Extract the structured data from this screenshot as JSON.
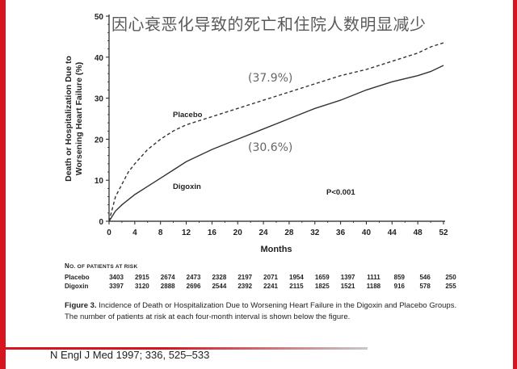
{
  "slide": {
    "title": "因心衰恶化导致的死亡和住院人数明显减少",
    "source": "N Engl J Med 1997; 336, 525–533"
  },
  "chart_data": {
    "type": "line",
    "ylabel_line1": "Death or Hospitalization Due to",
    "ylabel_line2": "Worsening Heart Failure (%)",
    "xlabel": "Months",
    "xlim": [
      0,
      52
    ],
    "ylim": [
      0,
      50
    ],
    "xticks": [
      0,
      4,
      8,
      12,
      16,
      20,
      24,
      28,
      32,
      36,
      40,
      44,
      48,
      52
    ],
    "yticks": [
      0,
      10,
      20,
      30,
      40,
      50
    ],
    "series": [
      {
        "name": "Placebo",
        "style": "dashed",
        "end_label": "(37.9%)",
        "points": [
          [
            0,
            0
          ],
          [
            1,
            6
          ],
          [
            2,
            9
          ],
          [
            3,
            12
          ],
          [
            4,
            14
          ],
          [
            6,
            17.5
          ],
          [
            8,
            20
          ],
          [
            10,
            22
          ],
          [
            12,
            23.5
          ],
          [
            14,
            24.5
          ],
          [
            16,
            25.5
          ],
          [
            18,
            26.5
          ],
          [
            20,
            27.5
          ],
          [
            24,
            29.5
          ],
          [
            28,
            31.5
          ],
          [
            32,
            33.5
          ],
          [
            36,
            35.5
          ],
          [
            40,
            37
          ],
          [
            44,
            39
          ],
          [
            48,
            41
          ],
          [
            50,
            42.5
          ],
          [
            52,
            43.5
          ]
        ]
      },
      {
        "name": "Digoxin",
        "style": "solid",
        "end_label": "(30.6%)",
        "points": [
          [
            0,
            0
          ],
          [
            1,
            2.5
          ],
          [
            2,
            4
          ],
          [
            4,
            6.5
          ],
          [
            6,
            8.5
          ],
          [
            8,
            10.5
          ],
          [
            10,
            12.5
          ],
          [
            12,
            14.5
          ],
          [
            16,
            17.5
          ],
          [
            20,
            20
          ],
          [
            24,
            22.5
          ],
          [
            28,
            25
          ],
          [
            32,
            27.5
          ],
          [
            36,
            29.5
          ],
          [
            40,
            32
          ],
          [
            44,
            34
          ],
          [
            48,
            35.5
          ],
          [
            50,
            36.5
          ],
          [
            52,
            38
          ]
        ]
      }
    ],
    "annotation": "P<0.001"
  },
  "risk_table": {
    "header_prefix": "N",
    "header_rest": "O. OF PATIENTS AT RISK",
    "rows": [
      {
        "name": "Placebo",
        "values": [
          "3403",
          "2915",
          "2674",
          "2473",
          "2328",
          "2197",
          "2071",
          "1954",
          "1659",
          "1397",
          "1111",
          "859",
          "546",
          "250"
        ]
      },
      {
        "name": "Digoxin",
        "values": [
          "3397",
          "3120",
          "2888",
          "2696",
          "2544",
          "2392",
          "2241",
          "2115",
          "1825",
          "1521",
          "1188",
          "916",
          "578",
          "255"
        ]
      }
    ]
  },
  "caption": {
    "figure_label": "Figure 3.",
    "text": "Incidence of Death or Hospitalization Due to Worsening Heart Failure in the Digoxin and Placebo Groups.",
    "note": "The number of patients at risk at each four-month interval is shown below the figure."
  }
}
